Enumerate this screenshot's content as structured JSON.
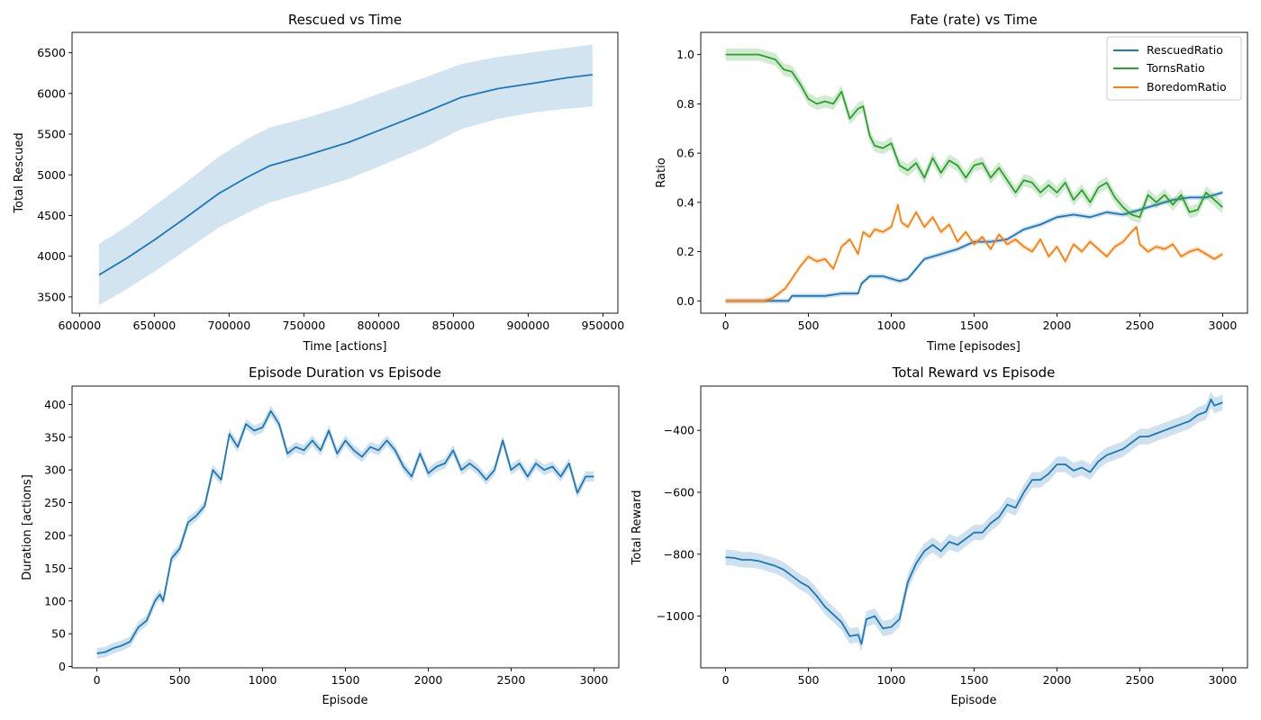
{
  "colors": {
    "blue": "#1f77b4",
    "green": "#2ca02c",
    "orange": "#ff7f0e",
    "band_blue": "#1f77b4"
  },
  "chart_data": [
    {
      "id": "rescued",
      "type": "line",
      "title": "Rescued vs Time",
      "xlabel": "Time [actions]",
      "ylabel": "Total Rescued",
      "xlim": [
        595000,
        960000
      ],
      "ylim": [
        3300,
        6750
      ],
      "xticks": [
        600000,
        650000,
        700000,
        750000,
        800000,
        850000,
        900000,
        950000
      ],
      "xtick_labels": [
        "600000",
        "650000",
        "700000",
        "750000",
        "800000",
        "850000",
        "900000",
        "950000"
      ],
      "yticks": [
        3500,
        4000,
        4500,
        5000,
        5500,
        6000,
        6500
      ],
      "ytick_labels": [
        "3500",
        "4000",
        "4500",
        "5000",
        "5500",
        "6000",
        "6500"
      ],
      "grid": false,
      "series": [
        {
          "color_key": "blue",
          "x": [
            613000,
            632000,
            650000,
            670000,
            693000,
            712000,
            727000,
            750000,
            780000,
            805000,
            830000,
            855000,
            880000,
            905000,
            925000,
            943000
          ],
          "y": [
            3770,
            3980,
            4200,
            4460,
            4770,
            4970,
            5110,
            5230,
            5400,
            5580,
            5760,
            5950,
            6060,
            6130,
            6190,
            6230
          ],
          "band_lo": [
            3400,
            3600,
            3810,
            4060,
            4350,
            4530,
            4660,
            4780,
            4950,
            5140,
            5330,
            5560,
            5690,
            5770,
            5810,
            5840
          ],
          "band_hi": [
            4150,
            4370,
            4620,
            4890,
            5220,
            5440,
            5580,
            5690,
            5860,
            6030,
            6190,
            6360,
            6450,
            6510,
            6560,
            6600
          ]
        }
      ]
    },
    {
      "id": "fate",
      "type": "line",
      "title": "Fate (rate) vs Time",
      "xlabel": "Time [episodes]",
      "ylabel": "Ratio",
      "xlim": [
        -150,
        3150
      ],
      "ylim": [
        -0.05,
        1.09
      ],
      "xticks": [
        0,
        500,
        1000,
        1500,
        2000,
        2500,
        3000
      ],
      "xtick_labels": [
        "0",
        "500",
        "1000",
        "1500",
        "2000",
        "2500",
        "3000"
      ],
      "yticks": [
        0,
        0.2,
        0.4,
        0.6,
        0.8,
        1.0
      ],
      "ytick_labels": [
        "0.0",
        "0.2",
        "0.4",
        "0.6",
        "0.8",
        "1.0"
      ],
      "grid": false,
      "legend": {
        "position": "upper-right",
        "entries": [
          "RescuedRatio",
          "TornsRatio",
          "BoredomRatio"
        ]
      },
      "series": [
        {
          "name": "RescuedRatio",
          "color_key": "blue",
          "band": 0.01,
          "x": [
            0,
            200,
            380,
            400,
            450,
            500,
            600,
            700,
            800,
            820,
            870,
            900,
            950,
            1000,
            1050,
            1100,
            1150,
            1200,
            1300,
            1400,
            1500,
            1600,
            1700,
            1800,
            1900,
            2000,
            2100,
            2200,
            2300,
            2400,
            2500,
            2600,
            2700,
            2800,
            2900,
            3000
          ],
          "y": [
            0,
            0,
            0,
            0.02,
            0.02,
            0.02,
            0.02,
            0.03,
            0.03,
            0.07,
            0.1,
            0.1,
            0.1,
            0.09,
            0.08,
            0.09,
            0.13,
            0.17,
            0.19,
            0.21,
            0.24,
            0.24,
            0.25,
            0.29,
            0.31,
            0.34,
            0.35,
            0.34,
            0.36,
            0.35,
            0.37,
            0.39,
            0.41,
            0.42,
            0.42,
            0.44
          ]
        },
        {
          "name": "TornsRatio",
          "color_key": "green",
          "band": 0.025,
          "x": [
            0,
            100,
            200,
            250,
            300,
            350,
            400,
            450,
            500,
            550,
            600,
            650,
            700,
            750,
            800,
            830,
            870,
            900,
            950,
            1000,
            1050,
            1100,
            1150,
            1200,
            1250,
            1300,
            1350,
            1400,
            1450,
            1500,
            1550,
            1600,
            1650,
            1700,
            1750,
            1800,
            1850,
            1900,
            1950,
            2000,
            2050,
            2100,
            2150,
            2200,
            2250,
            2300,
            2350,
            2400,
            2450,
            2500,
            2550,
            2600,
            2650,
            2700,
            2750,
            2800,
            2850,
            2900,
            2950,
            3000
          ],
          "y": [
            1.0,
            1.0,
            1.0,
            0.99,
            0.98,
            0.94,
            0.93,
            0.88,
            0.82,
            0.8,
            0.81,
            0.8,
            0.85,
            0.74,
            0.78,
            0.79,
            0.67,
            0.63,
            0.62,
            0.64,
            0.55,
            0.53,
            0.56,
            0.5,
            0.58,
            0.52,
            0.57,
            0.55,
            0.5,
            0.55,
            0.56,
            0.5,
            0.54,
            0.49,
            0.44,
            0.49,
            0.48,
            0.44,
            0.47,
            0.44,
            0.48,
            0.41,
            0.45,
            0.4,
            0.46,
            0.48,
            0.42,
            0.38,
            0.35,
            0.34,
            0.43,
            0.4,
            0.43,
            0.39,
            0.43,
            0.36,
            0.37,
            0.44,
            0.41,
            0.38
          ]
        },
        {
          "name": "BoredomRatio",
          "color_key": "orange",
          "band": 0.01,
          "x": [
            0,
            200,
            230,
            280,
            320,
            360,
            400,
            450,
            500,
            550,
            600,
            650,
            700,
            750,
            800,
            830,
            870,
            900,
            950,
            1000,
            1040,
            1060,
            1100,
            1150,
            1200,
            1250,
            1300,
            1350,
            1400,
            1450,
            1500,
            1550,
            1600,
            1650,
            1700,
            1750,
            1800,
            1850,
            1900,
            1950,
            2000,
            2050,
            2100,
            2150,
            2200,
            2250,
            2300,
            2350,
            2400,
            2450,
            2480,
            2500,
            2550,
            2600,
            2650,
            2700,
            2750,
            2800,
            2850,
            2900,
            2950,
            3000
          ],
          "y": [
            0,
            0,
            0,
            0.01,
            0.03,
            0.05,
            0.09,
            0.14,
            0.18,
            0.16,
            0.17,
            0.13,
            0.22,
            0.25,
            0.19,
            0.28,
            0.26,
            0.29,
            0.28,
            0.3,
            0.39,
            0.32,
            0.3,
            0.36,
            0.3,
            0.34,
            0.28,
            0.31,
            0.24,
            0.28,
            0.23,
            0.26,
            0.21,
            0.27,
            0.23,
            0.25,
            0.22,
            0.2,
            0.25,
            0.18,
            0.22,
            0.16,
            0.23,
            0.2,
            0.24,
            0.21,
            0.18,
            0.22,
            0.24,
            0.28,
            0.3,
            0.23,
            0.2,
            0.22,
            0.21,
            0.23,
            0.18,
            0.2,
            0.21,
            0.19,
            0.17,
            0.19
          ]
        }
      ]
    },
    {
      "id": "duration",
      "type": "line",
      "title": "Episode Duration vs Episode",
      "xlabel": "Episode",
      "ylabel": "Duration [actions]",
      "xlim": [
        -150,
        3150
      ],
      "ylim": [
        -2,
        428
      ],
      "xticks": [
        0,
        500,
        1000,
        1500,
        2000,
        2500,
        3000
      ],
      "xtick_labels": [
        "0",
        "500",
        "1000",
        "1500",
        "2000",
        "2500",
        "3000"
      ],
      "yticks": [
        0,
        50,
        100,
        150,
        200,
        250,
        300,
        350,
        400
      ],
      "ytick_labels": [
        "0",
        "50",
        "100",
        "150",
        "200",
        "250",
        "300",
        "350",
        "400"
      ],
      "grid": false,
      "series": [
        {
          "color_key": "blue",
          "band": 8,
          "x": [
            0,
            50,
            100,
            150,
            200,
            250,
            300,
            350,
            380,
            400,
            450,
            500,
            550,
            600,
            650,
            700,
            750,
            800,
            850,
            900,
            950,
            1000,
            1050,
            1100,
            1150,
            1200,
            1250,
            1300,
            1350,
            1400,
            1450,
            1500,
            1550,
            1600,
            1650,
            1700,
            1750,
            1800,
            1850,
            1900,
            1950,
            2000,
            2050,
            2100,
            2150,
            2200,
            2250,
            2300,
            2350,
            2400,
            2450,
            2500,
            2550,
            2600,
            2650,
            2700,
            2750,
            2800,
            2850,
            2900,
            2950,
            3000
          ],
          "y": [
            20,
            22,
            28,
            32,
            38,
            60,
            70,
            100,
            110,
            100,
            165,
            180,
            220,
            230,
            245,
            300,
            285,
            355,
            335,
            370,
            360,
            365,
            390,
            370,
            325,
            335,
            330,
            345,
            330,
            360,
            325,
            345,
            330,
            320,
            335,
            330,
            345,
            330,
            305,
            290,
            325,
            295,
            305,
            310,
            330,
            300,
            310,
            300,
            285,
            300,
            345,
            300,
            310,
            290,
            310,
            300,
            305,
            290,
            310,
            265,
            290,
            290
          ]
        }
      ]
    },
    {
      "id": "reward",
      "type": "line",
      "title": "Total Reward vs Episode",
      "xlabel": "Episode",
      "ylabel": "Total Reward",
      "xlim": [
        -150,
        3150
      ],
      "ylim": [
        -1167,
        -257
      ],
      "xticks": [
        0,
        500,
        1000,
        1500,
        2000,
        2500,
        3000
      ],
      "xtick_labels": [
        "0",
        "500",
        "1000",
        "1500",
        "2000",
        "2500",
        "3000"
      ],
      "yticks": [
        -1000,
        -800,
        -600,
        -400
      ],
      "ytick_labels": [
        "−1000",
        "−800",
        "−600",
        "−400"
      ],
      "grid": false,
      "series": [
        {
          "color_key": "blue",
          "band": 25,
          "x": [
            0,
            50,
            100,
            150,
            200,
            250,
            300,
            350,
            400,
            450,
            500,
            550,
            600,
            650,
            700,
            750,
            800,
            820,
            850,
            900,
            950,
            1000,
            1050,
            1100,
            1150,
            1200,
            1250,
            1300,
            1350,
            1400,
            1450,
            1500,
            1550,
            1600,
            1650,
            1700,
            1750,
            1800,
            1850,
            1900,
            1950,
            2000,
            2050,
            2100,
            2150,
            2200,
            2250,
            2300,
            2350,
            2400,
            2450,
            2500,
            2550,
            2600,
            2650,
            2700,
            2750,
            2800,
            2850,
            2900,
            2930,
            2950,
            3000
          ],
          "y": [
            -810,
            -812,
            -818,
            -818,
            -822,
            -830,
            -838,
            -850,
            -870,
            -890,
            -905,
            -935,
            -970,
            -995,
            -1020,
            -1065,
            -1060,
            -1090,
            -1010,
            -1000,
            -1040,
            -1035,
            -1010,
            -890,
            -830,
            -790,
            -770,
            -790,
            -760,
            -770,
            -750,
            -730,
            -730,
            -700,
            -680,
            -640,
            -650,
            -600,
            -560,
            -560,
            -540,
            -510,
            -510,
            -530,
            -520,
            -535,
            -500,
            -480,
            -470,
            -460,
            -440,
            -420,
            -420,
            -410,
            -400,
            -390,
            -380,
            -370,
            -350,
            -340,
            -300,
            -320,
            -310
          ]
        }
      ]
    }
  ]
}
